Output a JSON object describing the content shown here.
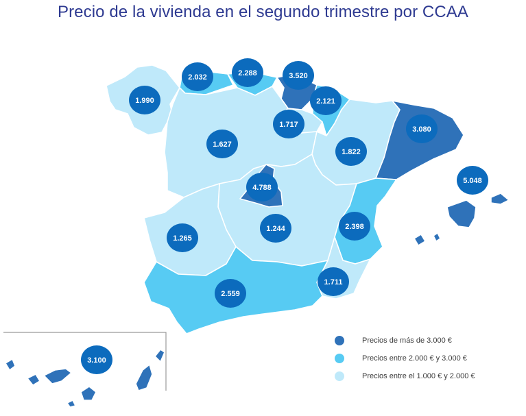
{
  "title": "Precio de la vivienda en el segundo trimestre por CCAA",
  "colors": {
    "high": "#2f72b9",
    "mid": "#57cbf3",
    "low": "#bfe9fa",
    "badge": "#0c6bbd"
  },
  "legend": [
    {
      "label": "Precios de más de 3.000 €",
      "tier": "high"
    },
    {
      "label": "Precios entre 2.000 € y 3.000 €",
      "tier": "mid"
    },
    {
      "label": "Precios entre el 1.000 € y 2.000 €",
      "tier": "low"
    }
  ],
  "regions": [
    {
      "id": "galicia",
      "value": "1.990",
      "tier": "low"
    },
    {
      "id": "asturias",
      "value": "2.032",
      "tier": "mid"
    },
    {
      "id": "cantabria",
      "value": "2.288",
      "tier": "mid"
    },
    {
      "id": "pais-vasco",
      "value": "3.520",
      "tier": "high"
    },
    {
      "id": "navarra",
      "value": "2.121",
      "tier": "mid"
    },
    {
      "id": "la-rioja",
      "value": "1.717",
      "tier": "low"
    },
    {
      "id": "castilla-y-leon",
      "value": "1.627",
      "tier": "low"
    },
    {
      "id": "aragon",
      "value": "1.822",
      "tier": "low"
    },
    {
      "id": "cataluna",
      "value": "3.080",
      "tier": "high"
    },
    {
      "id": "baleares",
      "value": "5.048",
      "tier": "high"
    },
    {
      "id": "madrid",
      "value": "4.788",
      "tier": "high"
    },
    {
      "id": "extremadura",
      "value": "1.265",
      "tier": "low"
    },
    {
      "id": "castilla-la-mancha",
      "value": "1.244",
      "tier": "low"
    },
    {
      "id": "comunidad-valenciana",
      "value": "2.398",
      "tier": "mid"
    },
    {
      "id": "murcia",
      "value": "1.711",
      "tier": "low"
    },
    {
      "id": "andalucia",
      "value": "2.559",
      "tier": "mid"
    },
    {
      "id": "canarias",
      "value": "3.100",
      "tier": "high"
    }
  ]
}
